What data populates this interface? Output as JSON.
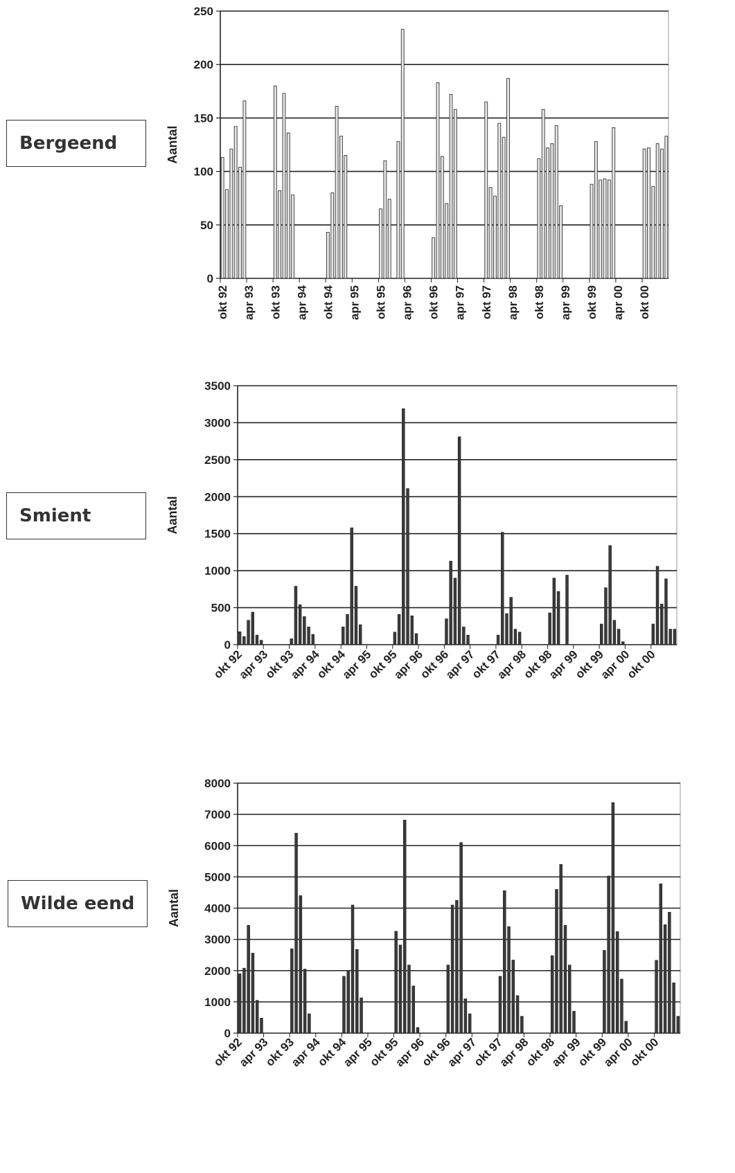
{
  "chart_data": [
    {
      "type": "bar",
      "label": "Bergeend",
      "ylabel": "Aantal",
      "ylim": [
        0,
        250
      ],
      "yticks": [
        0,
        50,
        100,
        150,
        200,
        250
      ],
      "tick_labels": [
        "okt 92",
        "apr 93",
        "okt 93",
        "apr 94",
        "okt 94",
        "apr 95",
        "okt 95",
        "apr 96",
        "okt 96",
        "apr 97",
        "okt 97",
        "apr 98",
        "okt 98",
        "apr 99",
        "okt 99",
        "apr 00",
        "okt 00"
      ],
      "label_rotation": 90,
      "bar_style": "light",
      "values": [
        113,
        83,
        121,
        142,
        104,
        166,
        null,
        null,
        null,
        null,
        null,
        null,
        180,
        82,
        173,
        136,
        78,
        null,
        null,
        null,
        null,
        null,
        null,
        null,
        43,
        80,
        161,
        133,
        115,
        null,
        null,
        null,
        null,
        null,
        null,
        null,
        65,
        110,
        74,
        null,
        128,
        233,
        null,
        null,
        null,
        null,
        null,
        null,
        38,
        183,
        114,
        70,
        172,
        158,
        null,
        null,
        null,
        null,
        null,
        null,
        165,
        85,
        77,
        145,
        132,
        187,
        null,
        null,
        null,
        null,
        null,
        null,
        112,
        158,
        122,
        126,
        143,
        68,
        null,
        null,
        null,
        null,
        null,
        null,
        88,
        128,
        92,
        93,
        92,
        141,
        null,
        null,
        null,
        null,
        null,
        null,
        121,
        122,
        86,
        126,
        121,
        133
      ]
    },
    {
      "type": "bar",
      "label": "Smient",
      "ylabel": "Aantal",
      "ylim": [
        0,
        3500
      ],
      "yticks": [
        0,
        500,
        1000,
        1500,
        2000,
        2500,
        3000,
        3500
      ],
      "tick_labels": [
        "okt 92",
        "apr 93",
        "okt 93",
        "apr 94",
        "okt 94",
        "apr 95",
        "okt 95",
        "apr 96",
        "okt 96",
        "apr 97",
        "okt 97",
        "apr 98",
        "okt 98",
        "apr 99",
        "okt 99",
        "apr 00",
        "okt 00"
      ],
      "label_rotation": -45,
      "bar_style": "dark",
      "values": [
        175,
        110,
        330,
        440,
        130,
        60,
        null,
        null,
        null,
        null,
        null,
        null,
        80,
        790,
        540,
        380,
        240,
        140,
        null,
        null,
        null,
        null,
        null,
        null,
        240,
        410,
        1580,
        790,
        270,
        null,
        null,
        null,
        null,
        null,
        null,
        null,
        170,
        410,
        3190,
        2110,
        390,
        150,
        null,
        null,
        null,
        null,
        null,
        null,
        350,
        1130,
        900,
        2810,
        240,
        130,
        null,
        null,
        null,
        null,
        null,
        null,
        130,
        1520,
        420,
        640,
        210,
        170,
        null,
        null,
        null,
        null,
        null,
        null,
        430,
        900,
        720,
        null,
        940,
        null,
        null,
        null,
        null,
        null,
        null,
        null,
        280,
        770,
        1340,
        330,
        210,
        40,
        null,
        null,
        null,
        null,
        null,
        null,
        280,
        1060,
        550,
        890,
        210,
        210
      ]
    },
    {
      "type": "bar",
      "label": "Wilde eend",
      "ylabel": "Aantal",
      "ylim": [
        0,
        8000
      ],
      "yticks": [
        0,
        1000,
        2000,
        3000,
        4000,
        5000,
        6000,
        7000,
        8000
      ],
      "tick_labels": [
        "okt 92",
        "apr 93",
        "okt 93",
        "apr 94",
        "okt 94",
        "apr 95",
        "okt 95",
        "apr 96",
        "okt 96",
        "apr 97",
        "okt 97",
        "apr 98",
        "okt 98",
        "apr 99",
        "okt 99",
        "apr 00",
        "okt 00"
      ],
      "label_rotation": -45,
      "bar_style": "dark",
      "values": [
        1900,
        2080,
        3450,
        2560,
        1050,
        480,
        null,
        null,
        null,
        null,
        null,
        null,
        2700,
        6400,
        4400,
        2050,
        620,
        null,
        null,
        null,
        null,
        null,
        null,
        null,
        1820,
        2000,
        4100,
        2680,
        1130,
        null,
        null,
        null,
        null,
        null,
        null,
        null,
        3260,
        2820,
        6820,
        2180,
        1510,
        180,
        null,
        null,
        null,
        null,
        null,
        null,
        2180,
        4100,
        4250,
        6100,
        1100,
        620,
        null,
        null,
        null,
        null,
        null,
        null,
        1820,
        4560,
        3410,
        2340,
        1200,
        540,
        null,
        null,
        null,
        null,
        null,
        null,
        2480,
        4600,
        5400,
        3450,
        2180,
        700,
        null,
        null,
        null,
        null,
        null,
        null,
        2650,
        5030,
        7380,
        3250,
        1730,
        380,
        null,
        null,
        null,
        null,
        null,
        null,
        2330,
        4780,
        3470,
        3870,
        1610,
        540
      ]
    }
  ]
}
